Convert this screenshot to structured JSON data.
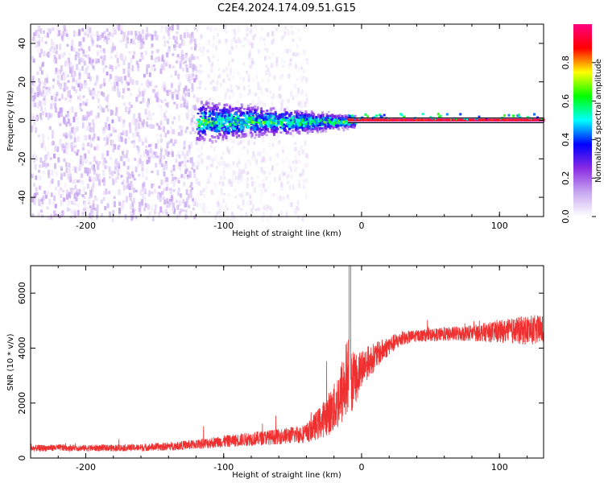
{
  "title": "C2E4.2024.174.09.51.G15",
  "chart_data": [
    {
      "type": "heatmap",
      "xlabel": "Height of straight line (km)",
      "ylabel": "Frequency (Hz)",
      "xlim": [
        -240,
        132
      ],
      "ylim": [
        -50,
        50
      ],
      "xticks": [
        -200,
        -100,
        0,
        100
      ],
      "yticks": [
        -40,
        -20,
        0,
        20,
        40
      ],
      "grid": false,
      "colorbar": {
        "label": "Normalized spectral amplitude",
        "range": [
          0,
          1
        ],
        "ticks": [
          0.0,
          0.2,
          0.4,
          0.6,
          0.8
        ],
        "colors": [
          "#ffffff",
          "#c8a8f0",
          "#8a2be2",
          "#0000ff",
          "#00ffff",
          "#00ff00",
          "#ffff00",
          "#ff0000",
          "#ff0080"
        ]
      },
      "regions": [
        {
          "x_range": [
            -240,
            -120
          ],
          "freq_range": [
            -50,
            50
          ],
          "amplitude": 0.07,
          "note": "dense purple noise"
        },
        {
          "x_range": [
            -120,
            -40
          ],
          "freq_range": [
            -50,
            50
          ],
          "amplitude": 0.02,
          "note": "sparse light noise"
        },
        {
          "x_range": [
            -120,
            -10
          ],
          "freq_range": [
            -12,
            12
          ],
          "amplitude": 0.3,
          "note": "broadened signal"
        },
        {
          "x_range": [
            -10,
            132
          ],
          "freq_range": [
            -2,
            2
          ],
          "amplitude": 0.9,
          "note": "narrow carrier line"
        }
      ]
    },
    {
      "type": "line",
      "xlabel": "Height of straight line (km)",
      "ylabel": "SNR (10 * v/v)",
      "xlim": [
        -240,
        132
      ],
      "ylim": [
        0,
        7000
      ],
      "xticks": [
        -200,
        -100,
        0,
        100
      ],
      "yticks": [
        0,
        2000,
        4000,
        6000
      ],
      "grid": false,
      "series": [
        {
          "color": "#ee3030",
          "x": [
            -240,
            -220,
            -200,
            -180,
            -160,
            -140,
            -120,
            -100,
            -80,
            -60,
            -40,
            -30,
            -20,
            -15,
            -10,
            -5,
            0,
            10,
            20,
            30,
            40,
            60,
            80,
            100,
            120,
            132
          ],
          "y": [
            350,
            380,
            360,
            370,
            380,
            420,
            500,
            600,
            700,
            780,
            900,
            1300,
            1800,
            2300,
            3000,
            2800,
            3300,
            3700,
            4100,
            4350,
            4450,
            4500,
            4550,
            4600,
            4650,
            4650
          ],
          "noise": [
            120,
            120,
            120,
            120,
            130,
            150,
            180,
            220,
            250,
            280,
            350,
            600,
            900,
            1200,
            1500,
            1000,
            700,
            500,
            350,
            250,
            220,
            250,
            300,
            400,
            550,
            550
          ]
        }
      ]
    }
  ]
}
